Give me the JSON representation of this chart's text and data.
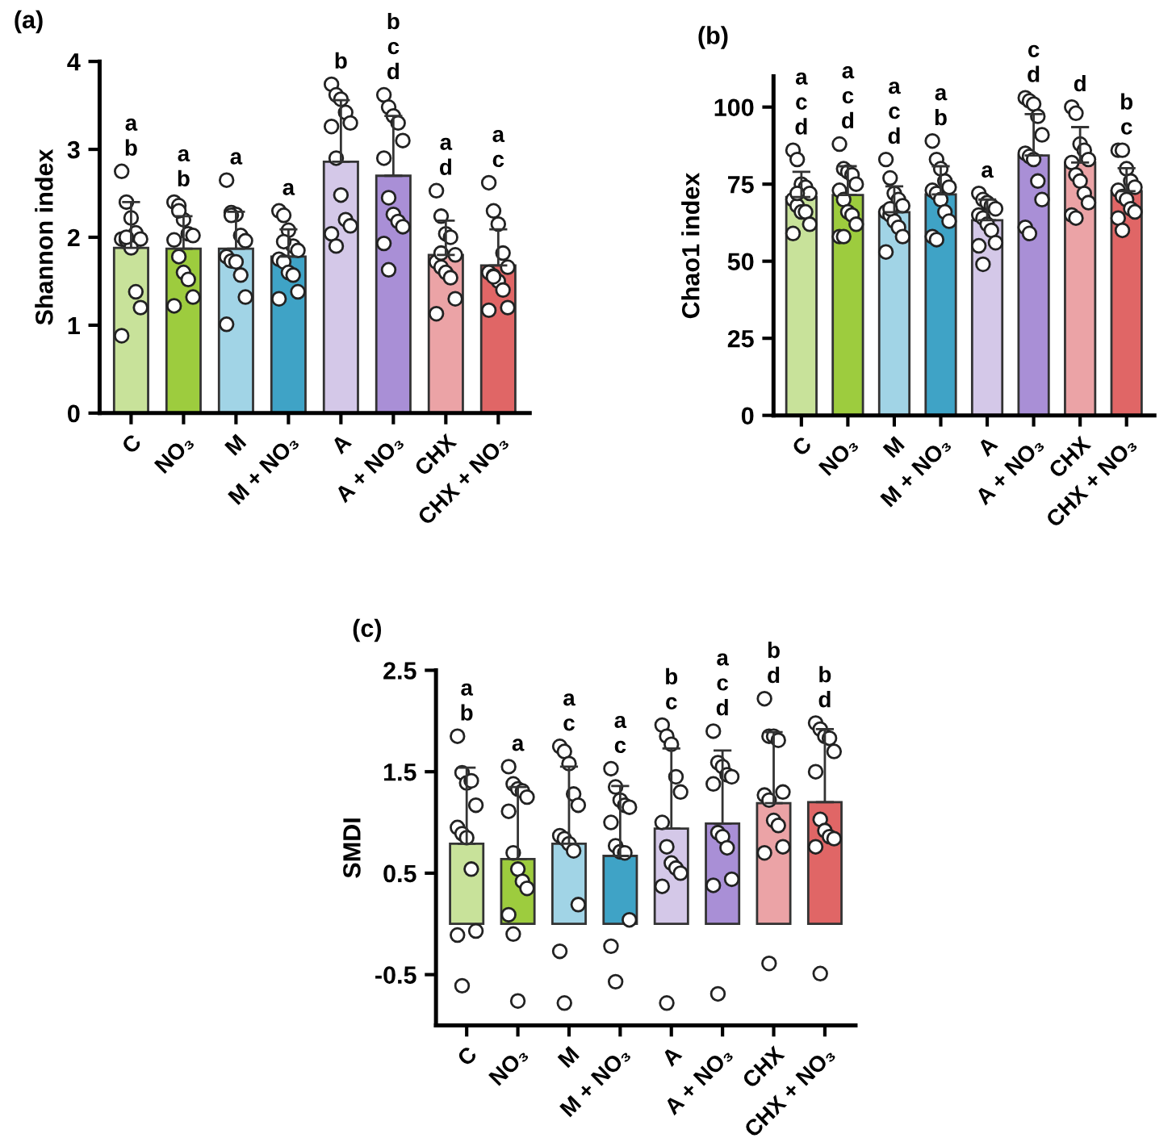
{
  "chart_data": [
    {
      "type": "bar",
      "title": "(a)",
      "ylabel": "Shannon index",
      "marker": "circle",
      "categories": [
        "C",
        "NO₃",
        "M",
        "M + NO₃",
        "A",
        "A + NO₃",
        "CHX",
        "CHX + NO₃"
      ],
      "ylim": [
        0,
        4
      ],
      "yticks": [
        0,
        1,
        2,
        3,
        4
      ],
      "series": [
        {
          "type": "bar",
          "colors": [
            "#c8e29a",
            "#9dcc3e",
            "#a1d4e6",
            "#3fa3c6",
            "#d4c8e8",
            "#a98fd6",
            "#eba3a6",
            "#e06666"
          ],
          "values": [
            1.88,
            1.87,
            1.87,
            1.78,
            2.86,
            2.7,
            1.8,
            1.68
          ],
          "errors": [
            0.52,
            0.37,
            0.42,
            0.31,
            0.7,
            0.68,
            0.39,
            0.41
          ]
        },
        {
          "type": "scatter",
          "color": "#ffffff",
          "x": [
            "C",
            "C",
            "C",
            "C",
            "C",
            "C",
            "C",
            "C",
            "C",
            "C",
            "C",
            "C",
            "NO₃",
            "NO₃",
            "NO₃",
            "NO₃",
            "NO₃",
            "NO₃",
            "NO₃",
            "NO₃",
            "NO₃",
            "NO₃",
            "NO₃",
            "NO₃",
            "M",
            "M",
            "M",
            "M",
            "M",
            "M",
            "M",
            "M",
            "M",
            "M",
            "M",
            "M",
            "M + NO₃",
            "M + NO₃",
            "M + NO₃",
            "M + NO₃",
            "M + NO₃",
            "M + NO₃",
            "M + NO₃",
            "M + NO₃",
            "M + NO₃",
            "M + NO₃",
            "M + NO₃",
            "M + NO₃",
            "A",
            "A",
            "A",
            "A",
            "A",
            "A",
            "A",
            "A",
            "A",
            "A",
            "A",
            "A",
            "A + NO₃",
            "A + NO₃",
            "A + NO₃",
            "A + NO₃",
            "A + NO₃",
            "A + NO₃",
            "A + NO₃",
            "A + NO₃",
            "A + NO₃",
            "A + NO₃",
            "A + NO₃",
            "A + NO₃",
            "CHX",
            "CHX",
            "CHX",
            "CHX",
            "CHX",
            "CHX",
            "CHX",
            "CHX",
            "CHX",
            "CHX",
            "CHX",
            "CHX",
            "CHX + NO₃",
            "CHX + NO₃",
            "CHX + NO₃",
            "CHX + NO₃",
            "CHX + NO₃",
            "CHX + NO₃",
            "CHX + NO₃",
            "CHX + NO₃",
            "CHX + NO₃",
            "CHX + NO₃",
            "CHX + NO₃",
            "CHX + NO₃"
          ],
          "values": [
            2.75,
            2.4,
            2.22,
            2.05,
            1.98,
            1.98,
            1.97,
            1.88,
            1.38,
            1.2,
            0.88,
            2.0,
            2.4,
            2.36,
            2.2,
            2.04,
            2.02,
            1.97,
            1.78,
            1.6,
            1.52,
            1.32,
            1.22,
            2.3,
            2.65,
            2.28,
            2.26,
            2.02,
            1.96,
            1.78,
            1.73,
            1.72,
            1.57,
            1.32,
            1.01,
            2.25,
            2.3,
            2.25,
            2.08,
            1.9,
            1.85,
            1.75,
            1.72,
            1.6,
            1.57,
            1.38,
            1.3,
            1.95,
            3.74,
            3.62,
            3.57,
            3.42,
            3.3,
            3.26,
            2.9,
            2.48,
            2.2,
            2.13,
            2.04,
            1.9,
            3.62,
            3.48,
            3.38,
            3.3,
            3.1,
            2.9,
            2.45,
            2.26,
            2.18,
            2.12,
            1.93,
            1.63,
            2.53,
            2.24,
            2.04,
            2.0,
            1.8,
            1.72,
            1.66,
            1.6,
            1.54,
            1.3,
            1.13,
            1.82,
            2.62,
            2.3,
            2.15,
            1.82,
            1.66,
            1.6,
            1.56,
            1.5,
            1.4,
            1.2,
            1.17,
            1.55
          ]
        }
      ],
      "annotations": [
        "a\nb",
        "a\nb",
        "a",
        "a",
        "b",
        "b\nc\nd",
        "a\nd",
        "a\nc"
      ]
    },
    {
      "type": "bar",
      "title": "(b)",
      "ylabel": "Chao1 index",
      "marker": "circle",
      "categories": [
        "C",
        "NO₃",
        "M",
        "M + NO₃",
        "A",
        "A + NO₃",
        "CHX",
        "CHX + NO₃"
      ],
      "ylim": [
        0,
        110
      ],
      "yticks": [
        0,
        25,
        50,
        75,
        100
      ],
      "series": [
        {
          "type": "bar",
          "colors": [
            "#c8e29a",
            "#9dcc3e",
            "#a1d4e6",
            "#3fa3c6",
            "#d4c8e8",
            "#a98fd6",
            "#eba3a6",
            "#e06666"
          ],
          "values": [
            70.8,
            71.5,
            65.9,
            71.7,
            63.3,
            84.3,
            82.0,
            72.7
          ],
          "errors": [
            8.2,
            9.3,
            8.4,
            9.1,
            6.7,
            13.4,
            11.5,
            7.5
          ]
        },
        {
          "type": "scatter",
          "color": "#ffffff",
          "x": [
            "C",
            "C",
            "C",
            "C",
            "C",
            "C",
            "C",
            "C",
            "C",
            "C",
            "C",
            "C",
            "NO₃",
            "NO₃",
            "NO₃",
            "NO₃",
            "NO₃",
            "NO₃",
            "NO₃",
            "NO₃",
            "NO₃",
            "NO₃",
            "NO₃",
            "NO₃",
            "M",
            "M",
            "M",
            "M",
            "M",
            "M",
            "M",
            "M",
            "M",
            "M",
            "M",
            "M",
            "M + NO₃",
            "M + NO₃",
            "M + NO₃",
            "M + NO₃",
            "M + NO₃",
            "M + NO₃",
            "M + NO₃",
            "M + NO₃",
            "M + NO₃",
            "M + NO₃",
            "M + NO₃",
            "M + NO₃",
            "A",
            "A",
            "A",
            "A",
            "A",
            "A",
            "A",
            "A",
            "A",
            "A",
            "A",
            "A",
            "A + NO₃",
            "A + NO₃",
            "A + NO₃",
            "A + NO₃",
            "A + NO₃",
            "A + NO₃",
            "A + NO₃",
            "A + NO₃",
            "A + NO₃",
            "A + NO₃",
            "A + NO₃",
            "A + NO₃",
            "CHX",
            "CHX",
            "CHX",
            "CHX",
            "CHX",
            "CHX",
            "CHX",
            "CHX",
            "CHX",
            "CHX",
            "CHX",
            "CHX",
            "CHX + NO₃",
            "CHX + NO₃",
            "CHX + NO₃",
            "CHX + NO₃",
            "CHX + NO₃",
            "CHX + NO₃",
            "CHX + NO₃",
            "CHX + NO₃",
            "CHX + NO₃",
            "CHX + NO₃",
            "CHX + NO₃",
            "CHX + NO₃"
          ],
          "values": [
            86,
            83,
            75,
            74,
            72,
            70,
            68,
            66,
            66,
            62,
            59,
            72,
            88,
            80,
            79,
            78,
            75,
            73,
            70,
            66,
            65,
            62,
            58,
            58,
            83,
            77,
            72,
            70,
            68,
            66,
            65,
            63,
            61,
            58,
            53,
            67,
            89,
            83,
            80,
            76,
            74,
            73,
            72,
            70,
            66,
            63,
            58,
            57,
            72,
            70,
            69,
            68,
            67,
            65,
            64,
            62,
            60,
            56,
            55,
            49,
            103,
            102,
            101,
            97,
            91,
            85,
            84,
            83,
            76,
            70,
            61,
            59,
            100,
            98,
            88,
            86,
            83,
            82,
            78,
            76,
            72,
            69,
            65,
            64,
            86,
            86,
            80,
            76,
            74,
            73,
            71,
            70,
            67,
            66,
            64,
            60
          ]
        }
      ],
      "annotations": [
        "a\nc\nd",
        "a\nc\nd",
        "a\nc\nd",
        "a\nb",
        "a",
        "c\nd",
        "d",
        "b\nc"
      ]
    },
    {
      "type": "bar",
      "title": "(c)",
      "ylabel": "SMDI",
      "marker": "circle",
      "categories": [
        "C",
        "NO₃",
        "M",
        "M + NO₃",
        "A",
        "A + NO₃",
        "CHX",
        "CHX + NO₃"
      ],
      "ylim": [
        -1,
        2.5
      ],
      "yticks": [
        -0.5,
        0.5,
        1.5,
        2.5
      ],
      "series": [
        {
          "type": "bar",
          "colors": [
            "#c8e29a",
            "#9dcc3e",
            "#a1d4e6",
            "#3fa3c6",
            "#d4c8e8",
            "#a98fd6",
            "#eba3a6",
            "#e06666"
          ],
          "values": [
            0.79,
            0.64,
            0.79,
            0.67,
            0.94,
            0.99,
            1.19,
            1.2
          ],
          "errors": [
            0.75,
            0.71,
            0.76,
            0.69,
            0.79,
            0.72,
            0.7,
            0.72
          ]
        },
        {
          "type": "scatter",
          "color": "#ffffff",
          "x": [
            "C",
            "C",
            "C",
            "C",
            "C",
            "C",
            "C",
            "C",
            "C",
            "C",
            "C",
            "C",
            "NO₃",
            "NO₃",
            "NO₃",
            "NO₃",
            "NO₃",
            "NO₃",
            "NO₃",
            "NO₃",
            "NO₃",
            "NO₃",
            "NO₃",
            "NO₃",
            "NO₃",
            "M",
            "M",
            "M",
            "M",
            "M",
            "M",
            "M",
            "M",
            "M",
            "M",
            "M",
            "M",
            "M + NO₃",
            "M + NO₃",
            "M + NO₃",
            "M + NO₃",
            "M + NO₃",
            "M + NO₃",
            "M + NO₃",
            "M + NO₃",
            "M + NO₃",
            "M + NO₃",
            "M + NO₃",
            "M + NO₃",
            "A",
            "A",
            "A",
            "A",
            "A",
            "A",
            "A",
            "A",
            "A",
            "A",
            "A",
            "A",
            "A + NO₃",
            "A + NO₃",
            "A + NO₃",
            "A + NO₃",
            "A + NO₃",
            "A + NO₃",
            "A + NO₃",
            "A + NO₃",
            "A + NO₃",
            "A + NO₃",
            "A + NO₃",
            "A + NO₃",
            "CHX",
            "CHX",
            "CHX",
            "CHX",
            "CHX",
            "CHX",
            "CHX",
            "CHX",
            "CHX",
            "CHX",
            "CHX",
            "CHX",
            "CHX + NO₃",
            "CHX + NO₃",
            "CHX + NO₃",
            "CHX + NO₃",
            "CHX + NO₃",
            "CHX + NO₃",
            "CHX + NO₃",
            "CHX + NO₃",
            "CHX + NO₃",
            "CHX + NO₃",
            "CHX + NO₃",
            "CHX + NO₃"
          ],
          "values": [
            1.85,
            1.49,
            1.39,
            1.41,
            1.17,
            0.95,
            0.89,
            0.85,
            0.54,
            -0.07,
            -0.11,
            -0.61,
            1.55,
            1.38,
            1.33,
            1.31,
            1.25,
            1.11,
            0.7,
            0.54,
            0.42,
            0.35,
            0.09,
            -0.1,
            -0.76,
            1.75,
            1.7,
            1.58,
            1.28,
            1.17,
            0.87,
            0.84,
            0.79,
            0.72,
            0.19,
            -0.27,
            -0.78,
            1.53,
            1.35,
            1.22,
            1.17,
            1.15,
            1.0,
            0.77,
            0.71,
            0.7,
            0.04,
            -0.22,
            -0.57,
            1.96,
            1.85,
            1.77,
            1.45,
            1.3,
            1.0,
            0.76,
            0.6,
            0.55,
            0.5,
            0.37,
            -0.78,
            1.9,
            1.59,
            1.55,
            1.47,
            1.45,
            1.38,
            0.9,
            0.86,
            0.75,
            0.44,
            0.38,
            -0.69,
            2.22,
            1.85,
            1.85,
            1.81,
            1.3,
            1.27,
            1.22,
            1.02,
            0.97,
            0.76,
            0.7,
            -0.39,
            1.98,
            1.92,
            1.85,
            1.83,
            1.7,
            1.5,
            1.03,
            0.92,
            0.86,
            0.84,
            0.76,
            -0.49
          ]
        }
      ],
      "annotations": [
        "a\nb",
        "a",
        "a\nc",
        "a\nc",
        "b\nc",
        "a\nc\nd",
        "b\nd",
        "b\nd"
      ]
    }
  ]
}
